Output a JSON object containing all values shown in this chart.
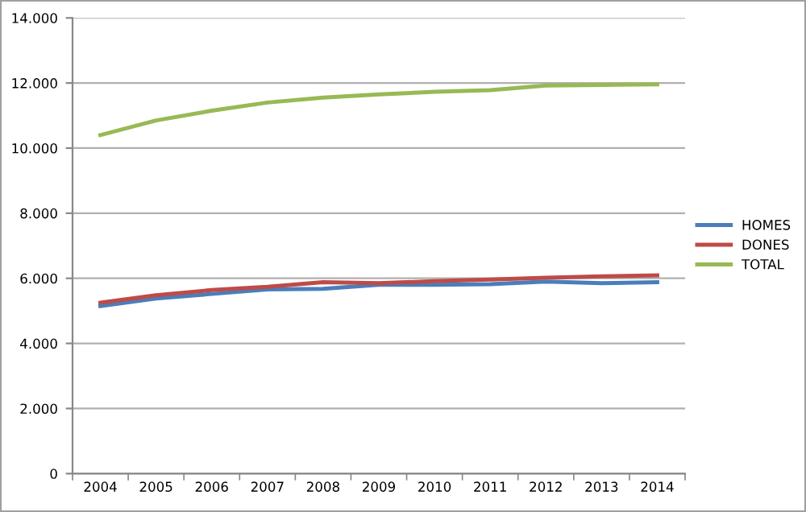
{
  "chart_data": {
    "type": "line",
    "categories": [
      "2004",
      "2005",
      "2006",
      "2007",
      "2008",
      "2009",
      "2010",
      "2011",
      "2012",
      "2013",
      "2014"
    ],
    "series": [
      {
        "name": "HOMES",
        "color": "#4a7ebb",
        "values": [
          5150,
          5380,
          5520,
          5660,
          5680,
          5800,
          5800,
          5820,
          5900,
          5850,
          5880
        ]
      },
      {
        "name": "DONES",
        "color": "#be4b48",
        "values": [
          5250,
          5480,
          5640,
          5740,
          5880,
          5850,
          5910,
          5960,
          6020,
          6060,
          6090
        ]
      },
      {
        "name": "TOTAL",
        "color": "#98b954",
        "values": [
          10400,
          10850,
          11150,
          11400,
          11550,
          11650,
          11730,
          11780,
          11920,
          11940,
          11960
        ]
      }
    ],
    "ylim": [
      0,
      14000
    ],
    "yticks": [
      0,
      {
        "value": 2000,
        "label": "2.000"
      },
      {
        "value": 4000,
        "label": "4.000"
      },
      {
        "value": 6000,
        "label": "6.000"
      },
      {
        "value": 8000,
        "label": "8.000"
      },
      {
        "value": 10000,
        "label": "10.000"
      },
      {
        "value": 12000,
        "label": "12.000"
      },
      {
        "value": 14000,
        "label": "14.000"
      }
    ],
    "grid": "y",
    "legend": "right",
    "marker": "none",
    "line_style": "solid"
  }
}
